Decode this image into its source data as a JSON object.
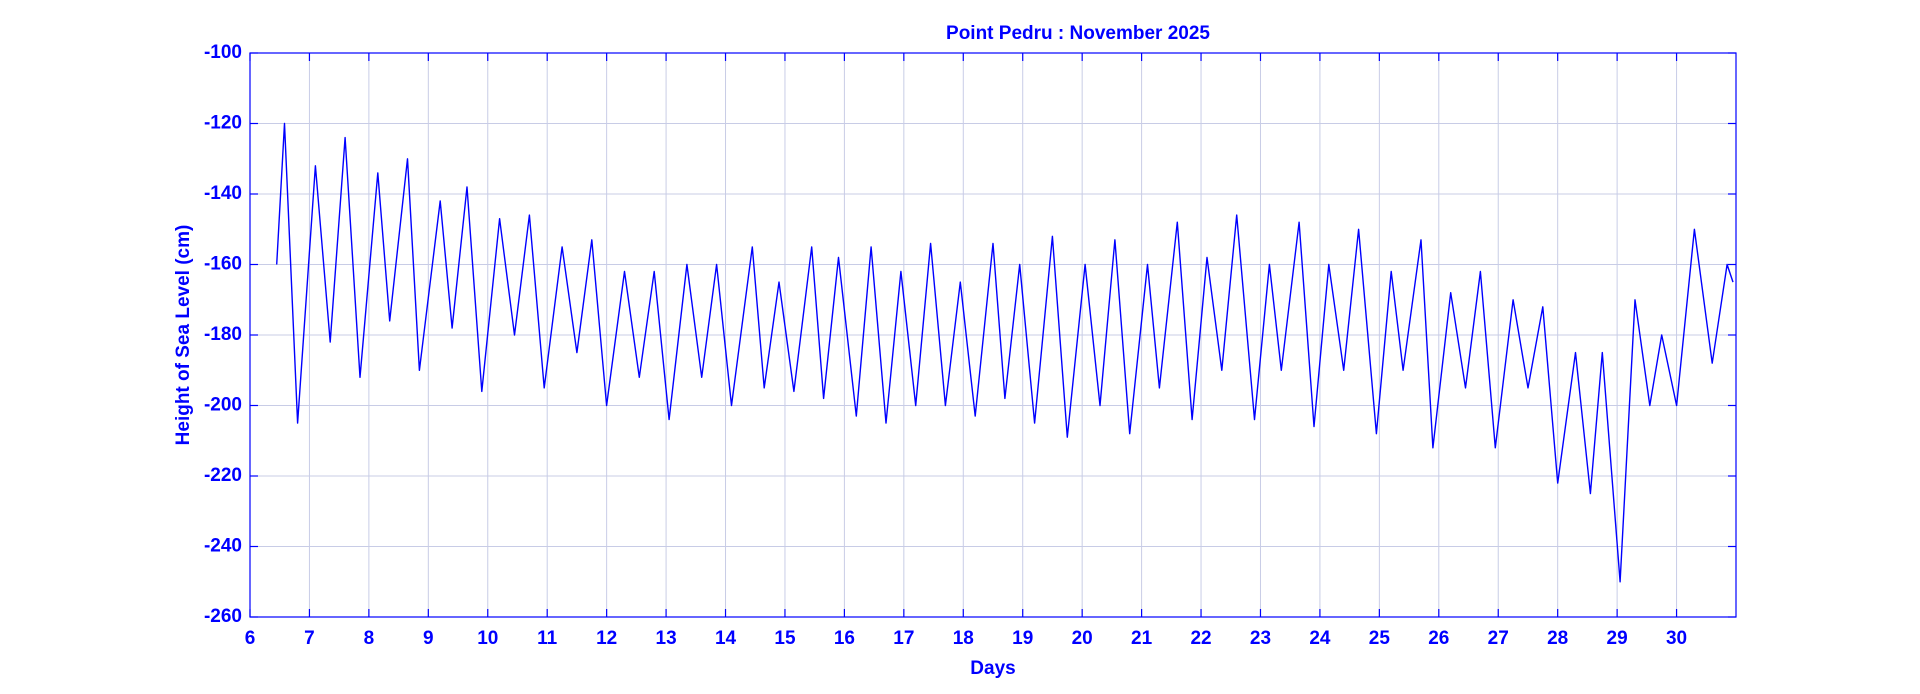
{
  "chart_data": {
    "type": "line",
    "title": "Point Pedru : November 2025",
    "x_label": "Days",
    "y_label": "Height of Sea Level (cm)",
    "xlim": [
      6,
      31
    ],
    "ylim": [
      -260,
      -100
    ],
    "xticks": [
      6,
      7,
      8,
      9,
      10,
      11,
      12,
      13,
      14,
      15,
      16,
      17,
      18,
      19,
      20,
      21,
      22,
      23,
      24,
      25,
      26,
      27,
      28,
      29,
      30
    ],
    "yticks": [
      -100,
      -120,
      -140,
      -160,
      -180,
      -200,
      -220,
      -240,
      -260
    ],
    "grid": true,
    "series": [
      {
        "name": "Sea level",
        "color": "#0000ff",
        "x": [
          6.45,
          6.58,
          6.8,
          7.1,
          7.35,
          7.6,
          7.85,
          8.15,
          8.35,
          8.65,
          8.85,
          9.2,
          9.4,
          9.65,
          9.9,
          10.2,
          10.45,
          10.7,
          10.95,
          11.25,
          11.5,
          11.75,
          12.0,
          12.3,
          12.55,
          12.8,
          13.05,
          13.35,
          13.6,
          13.85,
          14.1,
          14.45,
          14.65,
          14.9,
          15.15,
          15.45,
          15.65,
          15.9,
          16.2,
          16.45,
          16.7,
          16.95,
          17.2,
          17.45,
          17.7,
          17.95,
          18.2,
          18.5,
          18.7,
          18.95,
          19.2,
          19.5,
          19.75,
          20.05,
          20.3,
          20.55,
          20.8,
          21.1,
          21.3,
          21.6,
          21.85,
          22.1,
          22.35,
          22.6,
          22.9,
          23.15,
          23.35,
          23.65,
          23.9,
          24.15,
          24.4,
          24.65,
          24.95,
          25.2,
          25.4,
          25.7,
          25.9,
          26.2,
          26.45,
          26.7,
          26.95,
          27.25,
          27.5,
          27.75,
          28.0,
          28.3,
          28.55,
          28.75,
          29.05,
          29.3,
          29.55,
          29.75,
          30.0,
          30.3,
          30.6,
          30.85,
          30.95
        ],
        "values": [
          -160,
          -120,
          -205,
          -132,
          -182,
          -124,
          -192,
          -134,
          -176,
          -130,
          -190,
          -142,
          -178,
          -138,
          -196,
          -147,
          -180,
          -146,
          -195,
          -155,
          -185,
          -153,
          -200,
          -162,
          -192,
          -162,
          -204,
          -160,
          -192,
          -160,
          -200,
          -155,
          -195,
          -165,
          -196,
          -155,
          -198,
          -158,
          -203,
          -155,
          -205,
          -162,
          -200,
          -154,
          -200,
          -165,
          -203,
          -154,
          -198,
          -160,
          -205,
          -152,
          -209,
          -160,
          -200,
          -153,
          -208,
          -160,
          -195,
          -148,
          -204,
          -158,
          -190,
          -146,
          -204,
          -160,
          -190,
          -148,
          -206,
          -160,
          -190,
          -150,
          -208,
          -162,
          -190,
          -153,
          -212,
          -168,
          -195,
          -162,
          -212,
          -170,
          -195,
          -172,
          -222,
          -185,
          -225,
          -185,
          -250,
          -170,
          -200,
          -180,
          -200,
          -150,
          -188,
          -160,
          -165
        ]
      }
    ]
  }
}
